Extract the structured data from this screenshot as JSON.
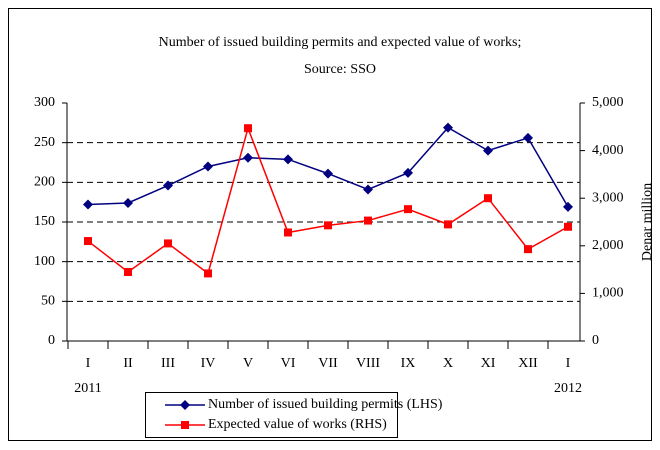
{
  "chart_data": {
    "type": "line",
    "title": "Number of issued building permits and expected value of works;",
    "subtitle": "Source: SSO",
    "y2_label": "Denar million",
    "categories": [
      "I",
      "II",
      "III",
      "IV",
      "V",
      "VI",
      "VII",
      "VIII",
      "IX",
      "X",
      "XI",
      "XII",
      "I"
    ],
    "year_labels": [
      "2011",
      null,
      null,
      null,
      null,
      null,
      null,
      null,
      null,
      null,
      null,
      null,
      "2012"
    ],
    "ylim": [
      0,
      300
    ],
    "yticks": [
      0,
      50,
      100,
      150,
      200,
      250,
      300
    ],
    "y2lim": [
      0,
      5000
    ],
    "y2ticks": [
      0,
      {
        "value": 1000,
        "label": "1,000"
      },
      {
        "value": 2000,
        "label": "2,000"
      },
      {
        "value": 3000,
        "label": "3,000"
      },
      {
        "value": 4000,
        "label": "4,000"
      },
      {
        "value": 5000,
        "label": "5,000"
      }
    ],
    "grid": true,
    "series": [
      {
        "name": "Number of issued building permits (LHS)",
        "color": "#000080",
        "marker": "diamond",
        "values": [
          172,
          174,
          196,
          220,
          231,
          229,
          211,
          191,
          212,
          269,
          240,
          256,
          169
        ]
      },
      {
        "name": "Expected value of works (RHS)",
        "color": "#ff0000",
        "marker": "square",
        "axis": "y2",
        "values": [
          2100,
          1450,
          2050,
          1420,
          4470,
          2280,
          2430,
          2530,
          2770,
          2450,
          3000,
          1930,
          2400
        ]
      }
    ]
  }
}
